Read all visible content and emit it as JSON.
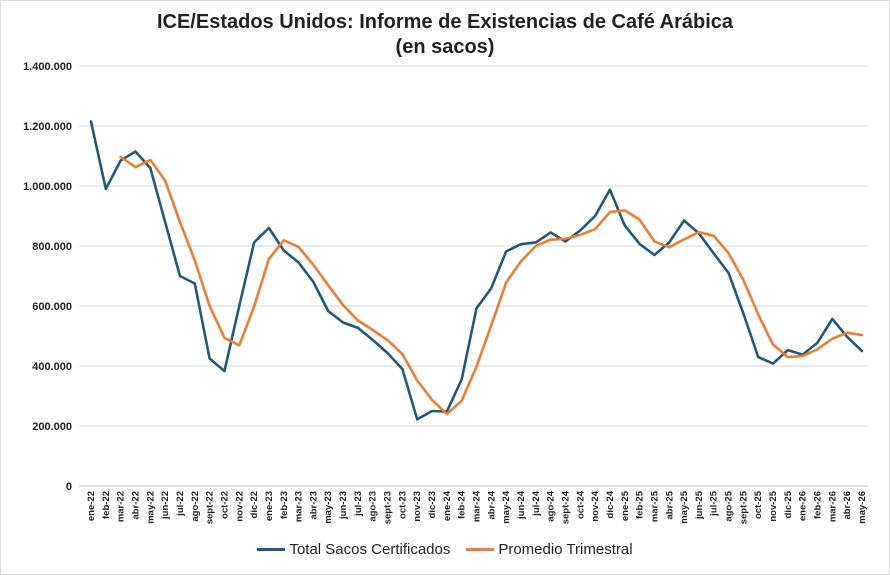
{
  "chart_data": {
    "type": "line",
    "title_line1": "ICE/Estados Unidos: Informe de Existencias de Café Arábica",
    "title_line2": "(en sacos)",
    "xlabel": "",
    "ylabel": "",
    "ylim": [
      0,
      1400000
    ],
    "y_ticks": [
      0,
      200000,
      400000,
      600000,
      800000,
      1000000,
      1200000,
      1400000
    ],
    "y_tick_labels": [
      "0",
      "200.000",
      "400.000",
      "600.000",
      "800.000",
      "1.000.000",
      "1.200.000",
      "1.400.000"
    ],
    "grid": true,
    "legend_position": "bottom",
    "categories": [
      "ene-22",
      "feb-22",
      "mar-22",
      "abr-22",
      "may-22",
      "jun-22",
      "jul-22",
      "ago-22",
      "sept-22",
      "oct-22",
      "nov-22",
      "dic-22",
      "ene-23",
      "feb-23",
      "mar-23",
      "abr-23",
      "may-23",
      "jun-23",
      "jul-23",
      "ago-23",
      "sept-23",
      "oct-23",
      "nov-23",
      "dic-23",
      "ene-24",
      "feb-24",
      "mar-24",
      "abr-24",
      "may-24",
      "jun-24",
      "jul-24",
      "ago-24",
      "sept-24",
      "oct-24",
      "nov-24",
      "dic-24",
      "ene-25",
      "feb-25",
      "mar-25",
      "abr-25",
      "may-25",
      "jun-25",
      "jul-25",
      "ago-25",
      "sept-25",
      "oct-25",
      "nov-25",
      "dic-25",
      "ene-26",
      "feb-26",
      "mar-26",
      "abr-26",
      "may-26"
    ],
    "series": [
      {
        "name": "Total Sacos Certificados",
        "color": "#1f5a7a",
        "values": [
          1215000,
          990000,
          1085000,
          1115000,
          1060000,
          880000,
          700000,
          675000,
          425000,
          383000,
          600000,
          812000,
          860000,
          785000,
          745000,
          680000,
          583000,
          545000,
          527000,
          487000,
          443000,
          390000,
          222000,
          250000,
          248000,
          355000,
          592000,
          660000,
          782000,
          806000,
          812000,
          845000,
          815000,
          852000,
          900000,
          988000,
          868000,
          807000,
          770000,
          812000,
          885000,
          842000,
          775000,
          710000,
          575000,
          430000,
          408000,
          453000,
          438000,
          478000,
          557000,
          497000,
          450000
        ]
      },
      {
        "name": "Promedio Trimestral",
        "color": "#ed7d31",
        "values": [
          null,
          null,
          1097000,
          1063000,
          1087000,
          1018000,
          880000,
          752000,
          600000,
          494000,
          469000,
          598000,
          757000,
          819000,
          797000,
          737000,
          669000,
          603000,
          552000,
          520000,
          486000,
          440000,
          352000,
          287000,
          240000,
          284000,
          398000,
          536000,
          678000,
          749000,
          800000,
          821000,
          824000,
          837000,
          856000,
          913000,
          919000,
          888000,
          815000,
          796000,
          822000,
          846000,
          834000,
          776000,
          687000,
          572000,
          471000,
          430000,
          433000,
          456000,
          491000,
          511000,
          503000
        ]
      }
    ]
  }
}
